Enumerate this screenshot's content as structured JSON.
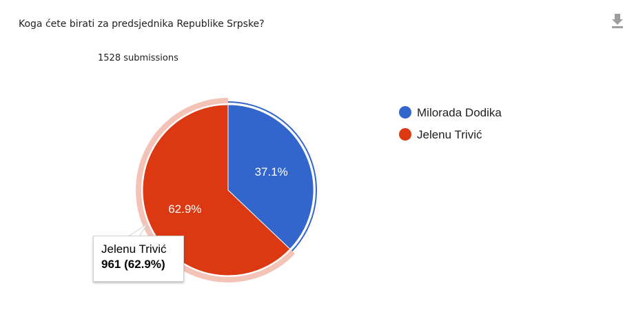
{
  "question": "Koga ćete birati za predsjednika Republike Srpske?",
  "submissions_label": "1528 submissions",
  "download_icon": "download-icon",
  "colors": {
    "series_0": "#3366cc",
    "series_1": "#dc3912"
  },
  "chart_data": {
    "type": "pie",
    "total": 1528,
    "slices": [
      {
        "name": "Milorada Dodika",
        "value": 567,
        "percent": 37.1,
        "label": "37.1%",
        "color": "#3366cc"
      },
      {
        "name": "Jelenu Trivić",
        "value": 961,
        "percent": 62.9,
        "label": "62.9%",
        "color": "#dc3912"
      }
    ],
    "legend_position": "right",
    "highlighted_slice": 1
  },
  "tooltip": {
    "name": "Jelenu Trivić",
    "value": "961 (62.9%)"
  }
}
